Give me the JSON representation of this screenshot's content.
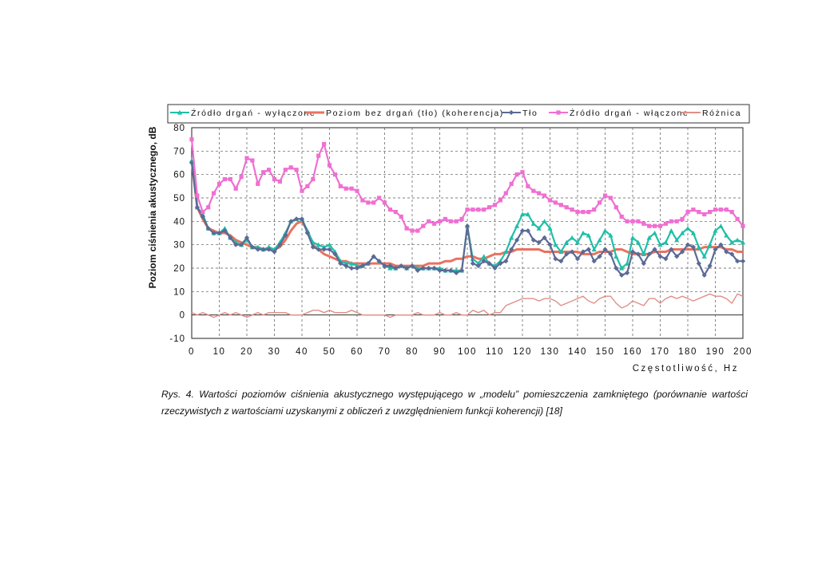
{
  "figure": {
    "caption": "Rys. 4. Wartości poziomów ciśnienia akustycznego występującego w „modelu” pomieszczenia zamkniętego (porównanie wartości rzeczywistych z wartościami uzyskanymi z obliczeń z uwzględnieniem funkcji koherencji) [18]"
  },
  "chart_data": {
    "type": "line",
    "title": "",
    "xlabel": "Częstotliwość, Hz",
    "ylabel": "Poziom ciśnienia akustycznego, dB",
    "xlim": [
      0,
      200
    ],
    "ylim": [
      -10,
      80
    ],
    "xticks": [
      0,
      10,
      20,
      30,
      40,
      50,
      60,
      70,
      80,
      90,
      100,
      110,
      120,
      130,
      140,
      150,
      160,
      170,
      180,
      190,
      200
    ],
    "yticks": [
      -10,
      0,
      10,
      20,
      30,
      40,
      50,
      60,
      70,
      80
    ],
    "grid": true,
    "legend_position": "top",
    "x": [
      0,
      2,
      4,
      6,
      8,
      10,
      12,
      14,
      16,
      18,
      20,
      22,
      24,
      26,
      28,
      30,
      32,
      34,
      36,
      38,
      40,
      42,
      44,
      46,
      48,
      50,
      52,
      54,
      56,
      58,
      60,
      62,
      64,
      66,
      68,
      70,
      72,
      74,
      76,
      78,
      80,
      82,
      84,
      86,
      88,
      90,
      92,
      94,
      96,
      98,
      100,
      102,
      104,
      106,
      108,
      110,
      112,
      114,
      116,
      118,
      120,
      122,
      124,
      126,
      128,
      130,
      132,
      134,
      136,
      138,
      140,
      142,
      144,
      146,
      148,
      150,
      152,
      154,
      156,
      158,
      160,
      162,
      164,
      166,
      168,
      170,
      172,
      174,
      176,
      178,
      180,
      182,
      184,
      186,
      188,
      190,
      192,
      194,
      196,
      198,
      200
    ],
    "series": [
      {
        "name": "Źródło drgań - wyłączone",
        "color": "#1fbfa8",
        "marker": "triangle",
        "values": [
          66,
          46,
          43,
          37,
          35,
          35,
          37,
          33,
          31,
          30,
          32,
          29,
          29,
          28,
          29,
          28,
          31,
          35,
          40,
          41,
          41,
          36,
          31,
          30,
          29,
          30,
          27,
          23,
          22,
          22,
          21,
          21,
          22,
          25,
          23,
          21,
          20,
          20,
          21,
          20,
          21,
          20,
          20,
          20,
          20,
          20,
          19,
          19,
          19,
          19,
          38,
          24,
          22,
          25,
          22,
          21,
          23,
          27,
          33,
          38,
          43,
          43,
          39,
          37,
          40,
          37,
          30,
          27,
          31,
          33,
          31,
          35,
          34,
          28,
          32,
          36,
          34,
          25,
          20,
          22,
          33,
          31,
          26,
          33,
          35,
          30,
          31,
          36,
          32,
          35,
          37,
          35,
          29,
          25,
          30,
          36,
          38,
          34,
          31,
          32,
          31
        ]
      },
      {
        "name": "Poziom bez drgań (tło) (koherencja)",
        "color": "#e9725f",
        "marker": "none",
        "values": [
          66,
          46,
          41,
          37,
          36,
          35,
          35,
          34,
          32,
          31,
          30,
          29,
          29,
          28,
          28,
          28,
          29,
          32,
          36,
          39,
          40,
          36,
          30,
          28,
          26,
          25,
          24,
          23,
          23,
          22,
          22,
          22,
          22,
          22,
          22,
          22,
          22,
          21,
          21,
          21,
          21,
          21,
          21,
          22,
          22,
          22,
          23,
          23,
          24,
          24,
          25,
          25,
          24,
          24,
          25,
          26,
          26,
          27,
          27,
          28,
          28,
          28,
          28,
          28,
          27,
          27,
          27,
          27,
          27,
          27,
          27,
          26,
          26,
          26,
          27,
          27,
          27,
          28,
          28,
          27,
          26,
          26,
          26,
          26,
          27,
          27,
          27,
          28,
          28,
          28,
          28,
          28,
          28,
          29,
          29,
          29,
          29,
          28,
          28,
          27,
          27
        ]
      },
      {
        "name": "Tło",
        "color": "#5b6a95",
        "marker": "diamond",
        "values": [
          65,
          46,
          42,
          37,
          35,
          35,
          36,
          33,
          30,
          30,
          33,
          29,
          28,
          28,
          28,
          27,
          30,
          34,
          40,
          41,
          41,
          35,
          29,
          28,
          28,
          28,
          26,
          22,
          21,
          20,
          20,
          21,
          22,
          25,
          23,
          21,
          21,
          20,
          21,
          20,
          21,
          19,
          20,
          20,
          20,
          19,
          19,
          19,
          18,
          19,
          38,
          22,
          21,
          23,
          22,
          20,
          22,
          23,
          28,
          32,
          36,
          36,
          32,
          31,
          33,
          30,
          24,
          23,
          26,
          27,
          24,
          27,
          28,
          23,
          25,
          28,
          26,
          20,
          17,
          18,
          27,
          26,
          22,
          26,
          28,
          25,
          24,
          28,
          25,
          27,
          30,
          29,
          22,
          17,
          21,
          28,
          30,
          27,
          26,
          23,
          23
        ]
      },
      {
        "name": "Źródło drgań - włączone",
        "color": "#f06fd2",
        "marker": "square",
        "values": [
          75,
          51,
          44,
          46,
          52,
          56,
          58,
          58,
          54,
          59,
          67,
          66,
          56,
          61,
          62,
          58,
          57,
          62,
          63,
          62,
          53,
          55,
          58,
          68,
          73,
          64,
          60,
          55,
          54,
          54,
          53,
          49,
          48,
          48,
          50,
          48,
          45,
          44,
          42,
          37,
          36,
          36,
          38,
          40,
          39,
          40,
          41,
          40,
          40,
          41,
          45,
          45,
          45,
          45,
          46,
          47,
          49,
          52,
          56,
          60,
          61,
          55,
          53,
          52,
          51,
          49,
          48,
          47,
          46,
          45,
          44,
          44,
          44,
          45,
          48,
          51,
          50,
          46,
          42,
          40,
          40,
          40,
          39,
          38,
          38,
          38,
          39,
          40,
          40,
          41,
          44,
          45,
          44,
          43,
          44,
          45,
          45,
          45,
          44,
          41,
          38
        ]
      },
      {
        "name": "Różnica",
        "color": "#e08f86",
        "marker": "none",
        "values": [
          1,
          0,
          1,
          0,
          -1,
          0,
          1,
          0,
          1,
          0,
          -1,
          0,
          1,
          0,
          1,
          1,
          1,
          1,
          0,
          0,
          0,
          1,
          2,
          2,
          1,
          2,
          1,
          1,
          1,
          2,
          1,
          0,
          0,
          0,
          0,
          0,
          -1,
          0,
          0,
          0,
          0,
          1,
          0,
          0,
          0,
          1,
          0,
          0,
          1,
          0,
          0,
          2,
          1,
          2,
          0,
          1,
          1,
          4,
          5,
          6,
          7,
          7,
          7,
          6,
          7,
          7,
          6,
          4,
          5,
          6,
          7,
          8,
          6,
          5,
          7,
          8,
          8,
          5,
          3,
          4,
          6,
          5,
          4,
          7,
          7,
          5,
          7,
          8,
          7,
          8,
          7,
          6,
          7,
          8,
          9,
          8,
          8,
          7,
          5,
          9,
          8
        ]
      }
    ]
  }
}
